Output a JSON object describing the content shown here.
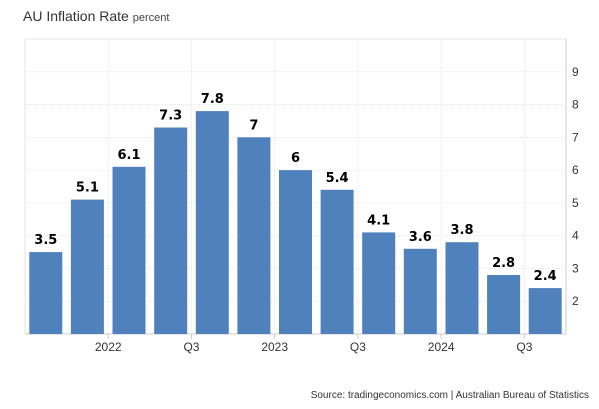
{
  "title": "AU Inflation Rate",
  "unit": "percent",
  "source": "Source: tradingeconomics.com | Australian Bureau of Statistics",
  "chart_data": {
    "type": "bar",
    "title": "AU Inflation Rate",
    "subtitle": "percent",
    "series": [
      {
        "values": [
          3.5,
          5.1,
          6.1,
          7.3,
          7.8,
          7,
          6,
          5.4,
          4.1,
          3.6,
          3.8,
          2.8,
          2.4
        ]
      }
    ],
    "data_labels": [
      "3.5",
      "5.1",
      "6.1",
      "7.3",
      "7.8",
      "7",
      "6",
      "5.4",
      "4.1",
      "3.6",
      "3.8",
      "2.8",
      "2.4"
    ],
    "x_tick_labels": [
      "2022",
      "Q3",
      "2023",
      "Q3",
      "2024",
      "Q3"
    ],
    "x_tick_after_bar": [
      1,
      3,
      5,
      7,
      9,
      11
    ],
    "y_ticks": [
      2,
      3,
      4,
      5,
      6,
      7,
      8,
      9
    ],
    "y_axis_position": "right",
    "ylim": [
      1,
      10
    ],
    "grid": true,
    "bar_color": "#4f81bd"
  }
}
